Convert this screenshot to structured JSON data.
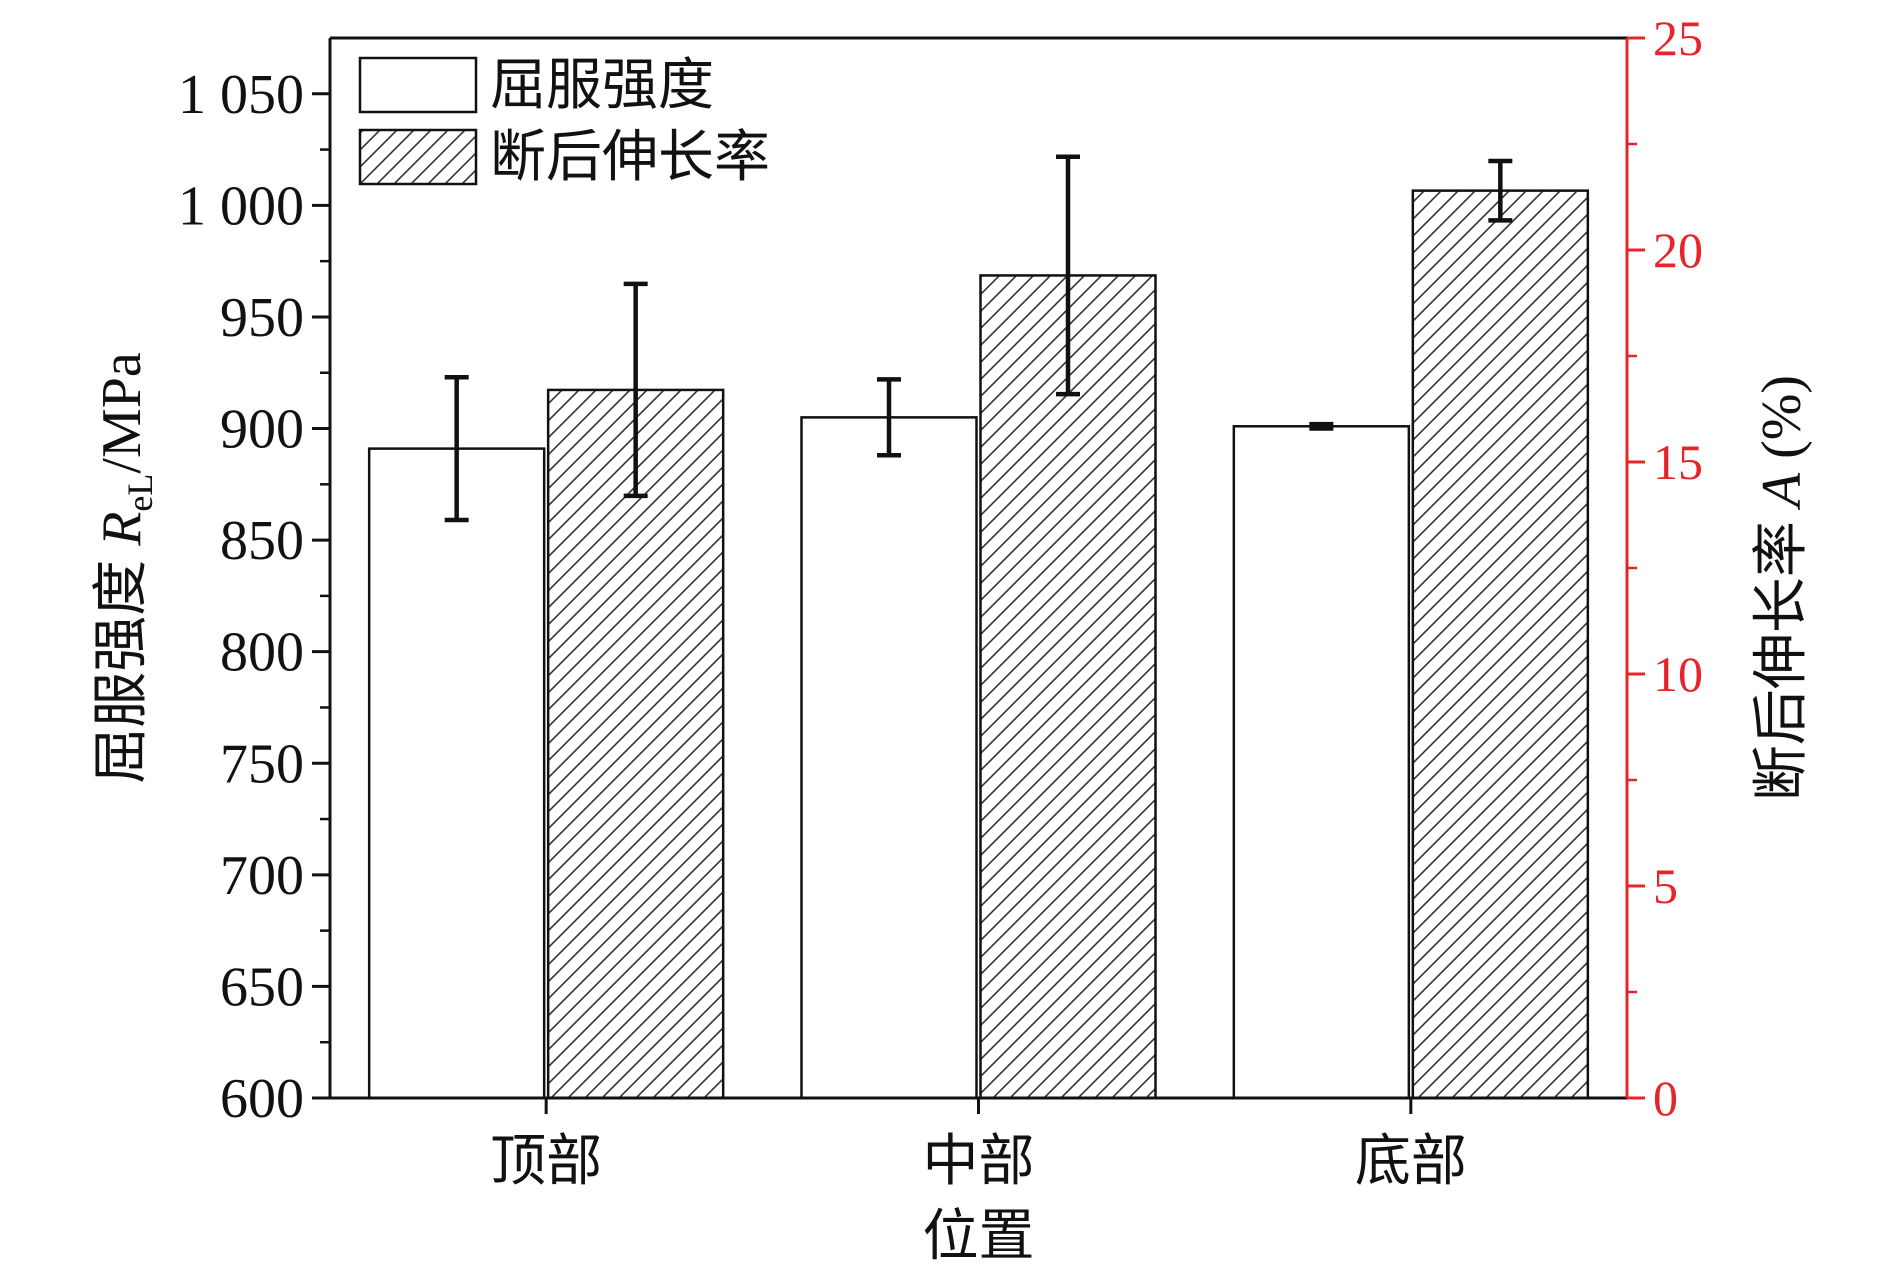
{
  "chart_data": {
    "type": "bar",
    "categories": [
      "顶部",
      "中部",
      "底部"
    ],
    "xlabel": "位置",
    "ylabel_left": {
      "prefix": "屈服强度 ",
      "symbol": "R",
      "subscript": "eL",
      "suffix": "/MPa"
    },
    "ylabel_right": {
      "prefix": "断后伸长率 ",
      "symbol": "A",
      "suffix": " (%)"
    },
    "ylim_left": [
      600,
      1075
    ],
    "yticks_left": [
      600,
      650,
      700,
      750,
      800,
      850,
      900,
      950,
      1000,
      1050
    ],
    "ytick_labels_left": [
      "600",
      "650",
      "700",
      "750",
      "800",
      "850",
      "900",
      "950",
      "1 000",
      "1 050"
    ],
    "ylim_right": [
      0,
      25
    ],
    "yticks_right": [
      0,
      5,
      10,
      15,
      20,
      25
    ],
    "ytick_labels_right": [
      "0",
      "5",
      "10",
      "15",
      "20",
      "25"
    ],
    "series": [
      {
        "name": "屈服强度",
        "axis": "left",
        "pattern": "solid",
        "values": [
          891,
          905,
          901
        ],
        "error": [
          32,
          17,
          1
        ]
      },
      {
        "name": "断后伸长率",
        "axis": "right",
        "pattern": "hatch",
        "values": [
          16.7,
          19.4,
          21.4
        ],
        "error": [
          2.5,
          2.8,
          0.7
        ]
      }
    ],
    "legend": {
      "placement": "top-left"
    },
    "grid": false,
    "colors": {
      "right_axis": "#e8242a",
      "axis": "#111111",
      "bar_fill": "#ffffff",
      "hatch": "#333333"
    }
  }
}
